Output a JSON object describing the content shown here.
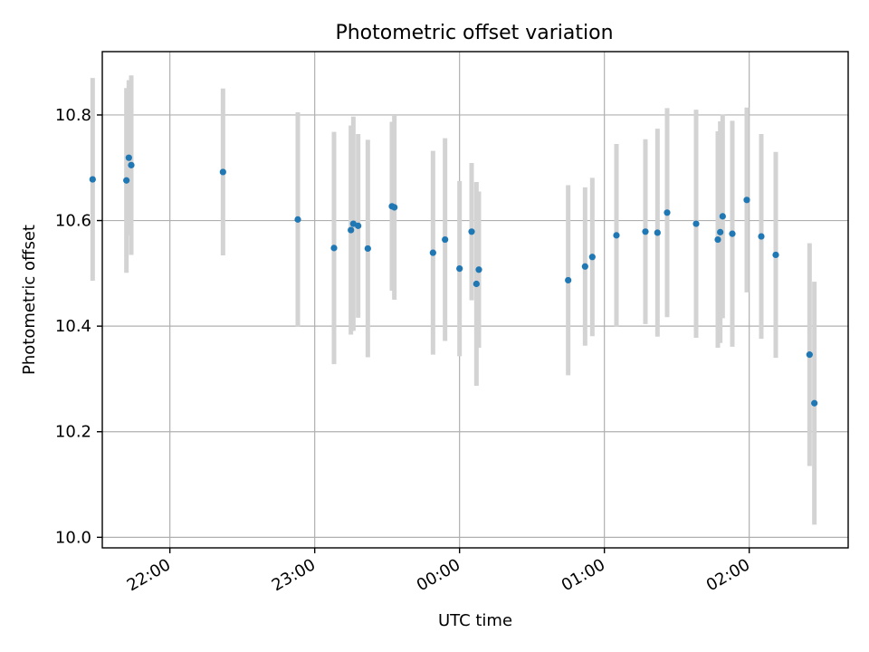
{
  "chart_data": {
    "type": "scatter",
    "title": "Photometric offset variation",
    "xlabel": "UTC time",
    "ylabel": "Photometric offset",
    "x_ticks": [
      "22:00",
      "23:00",
      "00:00",
      "01:00",
      "02:00"
    ],
    "y_ticks": [
      "10.0",
      "10.2",
      "10.4",
      "10.6",
      "10.8"
    ],
    "xlim": [
      "21:32",
      "02:41"
    ],
    "ylim": [
      9.98,
      10.92
    ],
    "grid": true,
    "colors": {
      "points": "#1f77b4",
      "error_bars": "#d3d3d3"
    },
    "points": [
      {
        "x": "21:28",
        "y": 10.678,
        "err": 0.192
      },
      {
        "x": "21:42",
        "y": 10.676,
        "err": 0.175
      },
      {
        "x": "21:43",
        "y": 10.719,
        "err": 0.147
      },
      {
        "x": "21:44",
        "y": 10.705,
        "err": 0.17
      },
      {
        "x": "22:22",
        "y": 10.692,
        "err": 0.158
      },
      {
        "x": "22:53",
        "y": 10.602,
        "err": 0.203
      },
      {
        "x": "23:08",
        "y": 10.548,
        "err": 0.22
      },
      {
        "x": "23:15",
        "y": 10.582,
        "err": 0.198
      },
      {
        "x": "23:16",
        "y": 10.594,
        "err": 0.203
      },
      {
        "x": "23:18",
        "y": 10.59,
        "err": 0.174
      },
      {
        "x": "23:22",
        "y": 10.547,
        "err": 0.206
      },
      {
        "x": "23:32",
        "y": 10.627,
        "err": 0.16
      },
      {
        "x": "23:33",
        "y": 10.625,
        "err": 0.175
      },
      {
        "x": "23:49",
        "y": 10.539,
        "err": 0.193
      },
      {
        "x": "23:54",
        "y": 10.564,
        "err": 0.192
      },
      {
        "x": "00:00",
        "y": 10.509,
        "err": 0.166
      },
      {
        "x": "00:05",
        "y": 10.579,
        "err": 0.13
      },
      {
        "x": "00:07",
        "y": 10.48,
        "err": 0.193
      },
      {
        "x": "00:08",
        "y": 10.507,
        "err": 0.148
      },
      {
        "x": "00:45",
        "y": 10.487,
        "err": 0.18
      },
      {
        "x": "00:52",
        "y": 10.513,
        "err": 0.15
      },
      {
        "x": "00:55",
        "y": 10.531,
        "err": 0.15
      },
      {
        "x": "01:05",
        "y": 10.572,
        "err": 0.173
      },
      {
        "x": "01:17",
        "y": 10.579,
        "err": 0.175
      },
      {
        "x": "01:22",
        "y": 10.577,
        "err": 0.197
      },
      {
        "x": "01:26",
        "y": 10.615,
        "err": 0.198
      },
      {
        "x": "01:38",
        "y": 10.594,
        "err": 0.216
      },
      {
        "x": "01:47",
        "y": 10.564,
        "err": 0.205
      },
      {
        "x": "01:48",
        "y": 10.578,
        "err": 0.21
      },
      {
        "x": "01:49",
        "y": 10.608,
        "err": 0.193
      },
      {
        "x": "01:53",
        "y": 10.575,
        "err": 0.214
      },
      {
        "x": "01:59",
        "y": 10.639,
        "err": 0.175
      },
      {
        "x": "02:05",
        "y": 10.57,
        "err": 0.194
      },
      {
        "x": "02:11",
        "y": 10.535,
        "err": 0.195
      },
      {
        "x": "02:25",
        "y": 10.346,
        "err": 0.211
      },
      {
        "x": "02:27",
        "y": 10.254,
        "err": 0.23
      }
    ]
  }
}
